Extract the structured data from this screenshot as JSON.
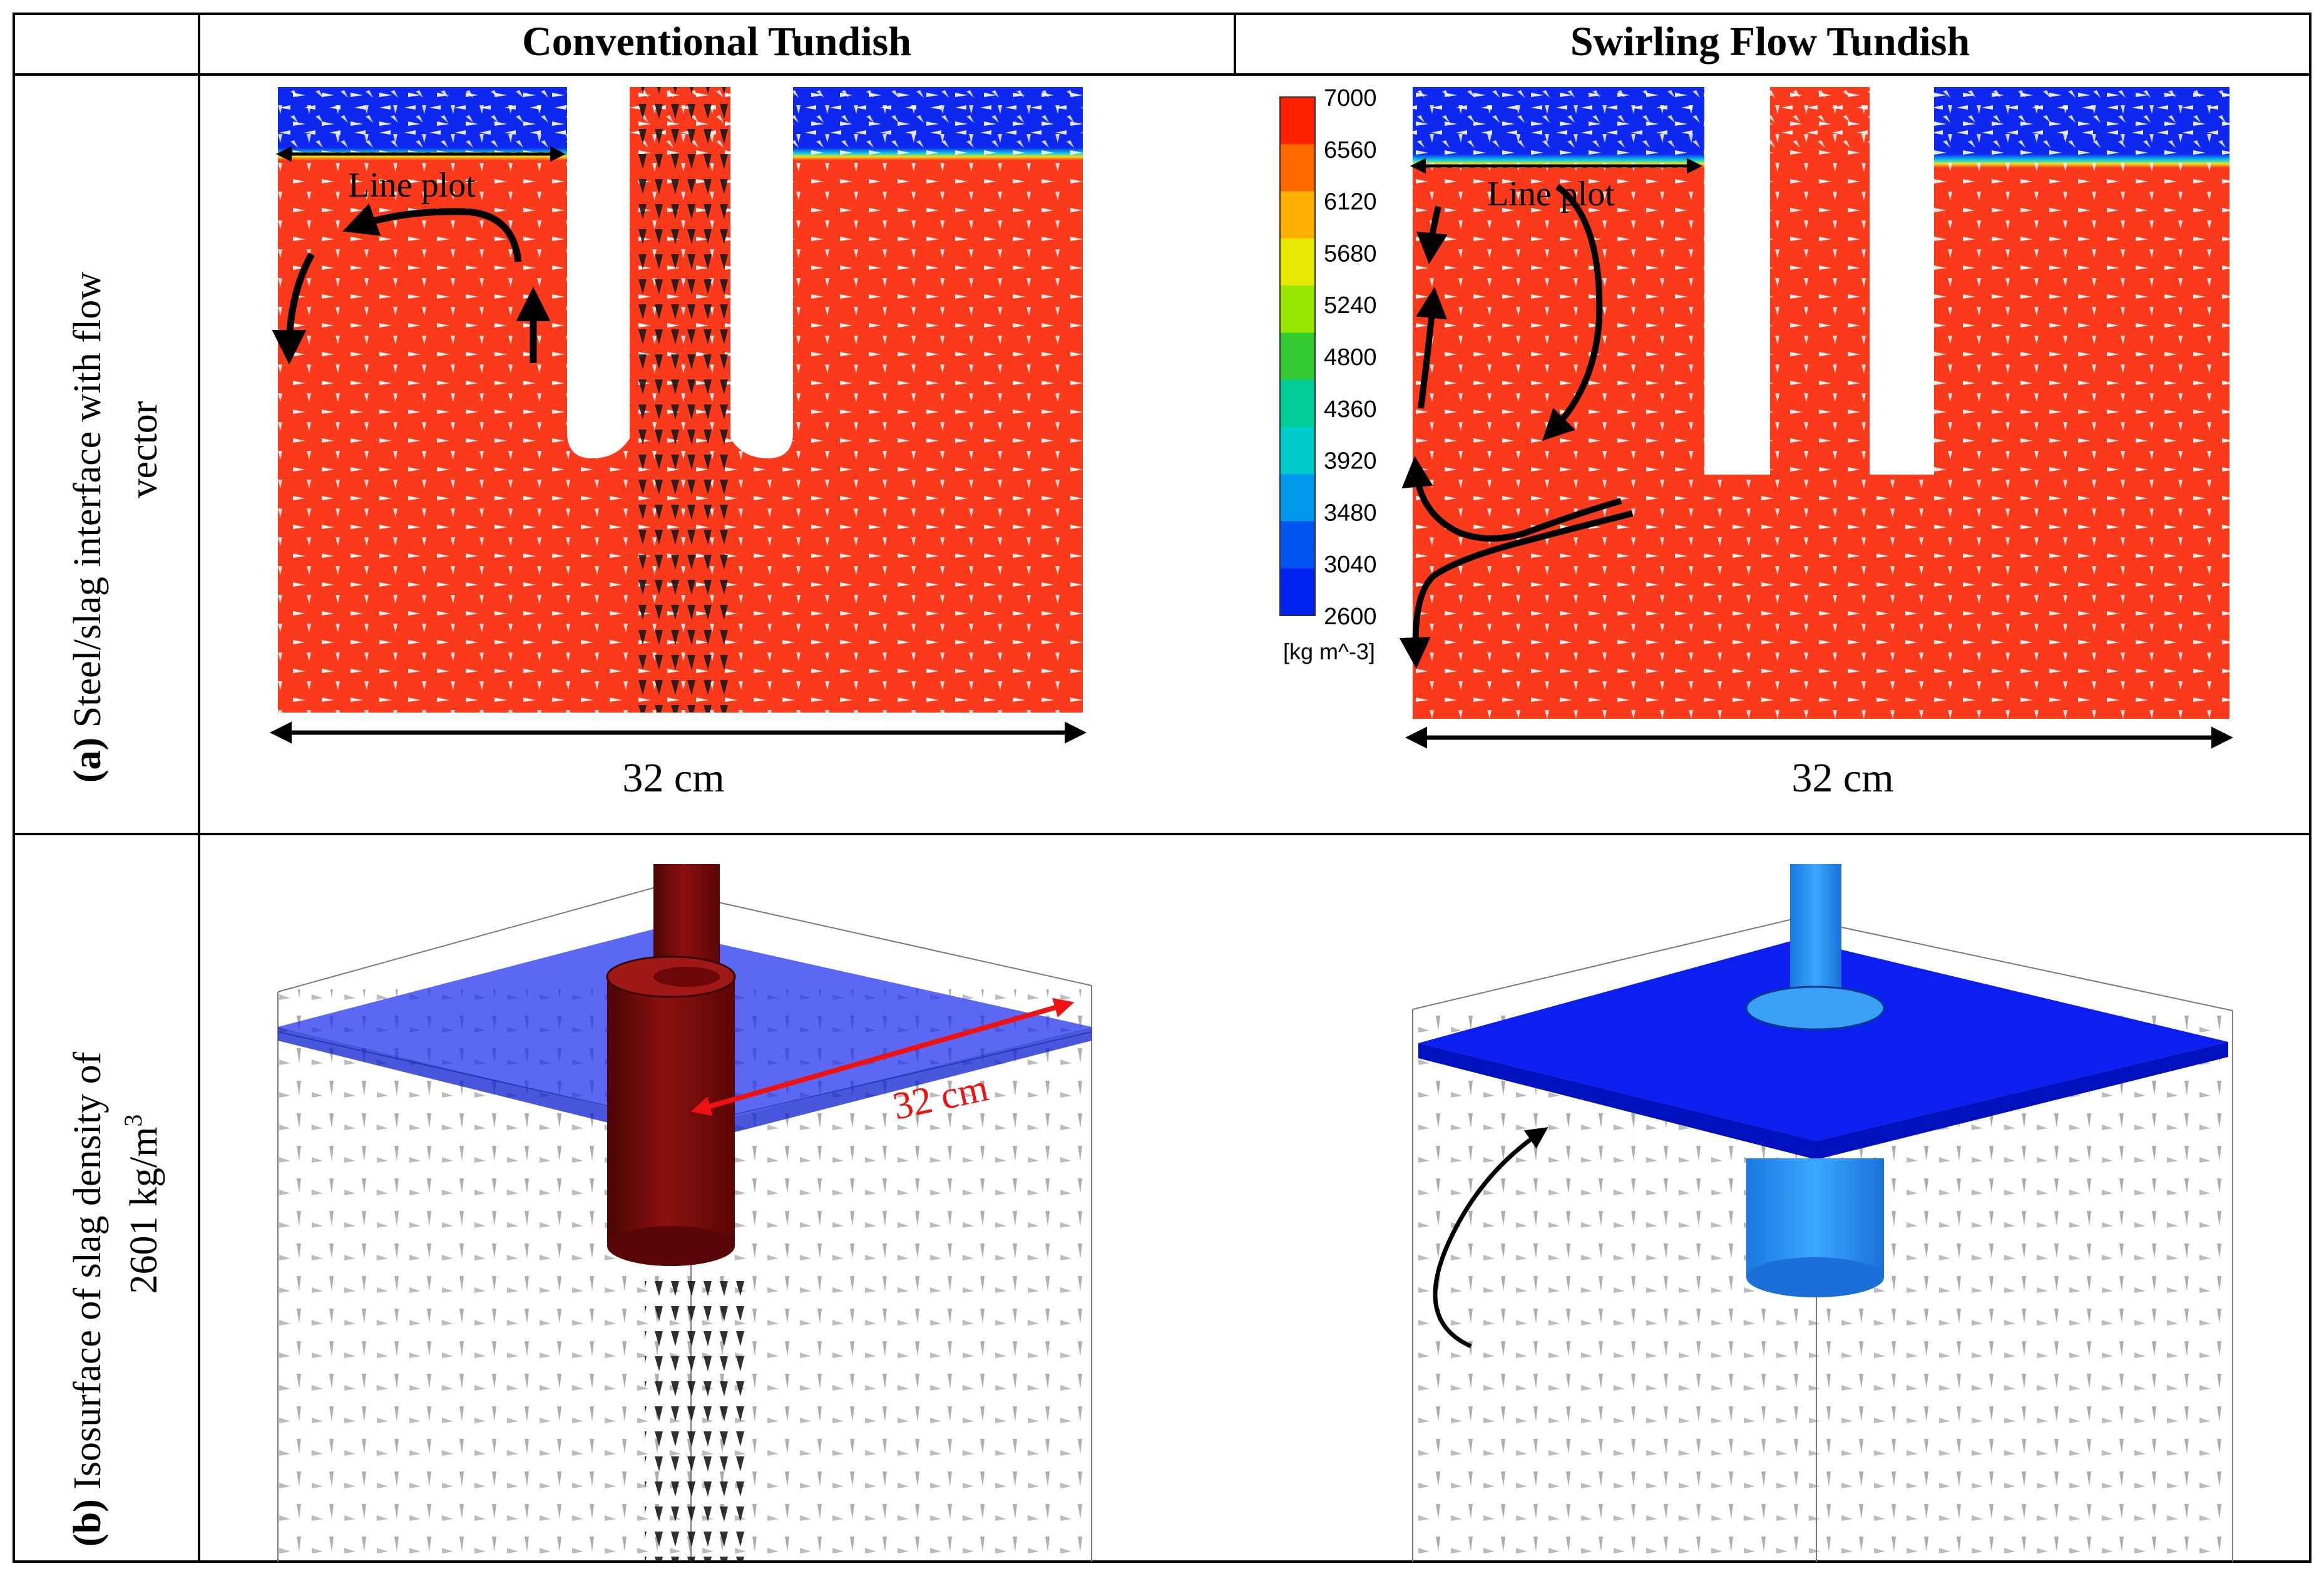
{
  "headers": {
    "conventional": "Conventional Tundish",
    "swirling": "Swirling Flow Tundish"
  },
  "row_a": {
    "label_bold": "(a)",
    "label_line1": " Steel/slag interface with flow",
    "label_line2": "vector"
  },
  "row_b": {
    "label_bold": "(b)",
    "label_line1": " Isosurface of slag density of",
    "label_line2_main": "2601 kg/m",
    "label_line2_sup": "3"
  },
  "panel_a_left": {
    "line_plot_label": "Line plot",
    "width_label": "32 cm"
  },
  "panel_a_right": {
    "line_plot_label": "Line plot",
    "width_label": "32 cm"
  },
  "panel_b_left": {
    "width_label": "32 cm"
  },
  "colorbar": {
    "ticks": [
      "7000",
      "6560",
      "6120",
      "5680",
      "5240",
      "4800",
      "4360",
      "3920",
      "3480",
      "3040",
      "2600"
    ],
    "unit": "[kg m^-3]",
    "colors": [
      "#ff2200",
      "#ff6a00",
      "#ffb000",
      "#e8e800",
      "#99e600",
      "#33cc33",
      "#00cc99",
      "#00cccc",
      "#0099ee",
      "#0055ee",
      "#0022ee"
    ]
  },
  "colors": {
    "steel_red": "#fa3a1a",
    "slag_blue": "#0f28f0",
    "arrow_black": "#000000",
    "dimension_red": "#ee1111",
    "nozzle_dark_red": "#6e0a0a",
    "nozzle_light_blue": "#2a8ff0"
  }
}
